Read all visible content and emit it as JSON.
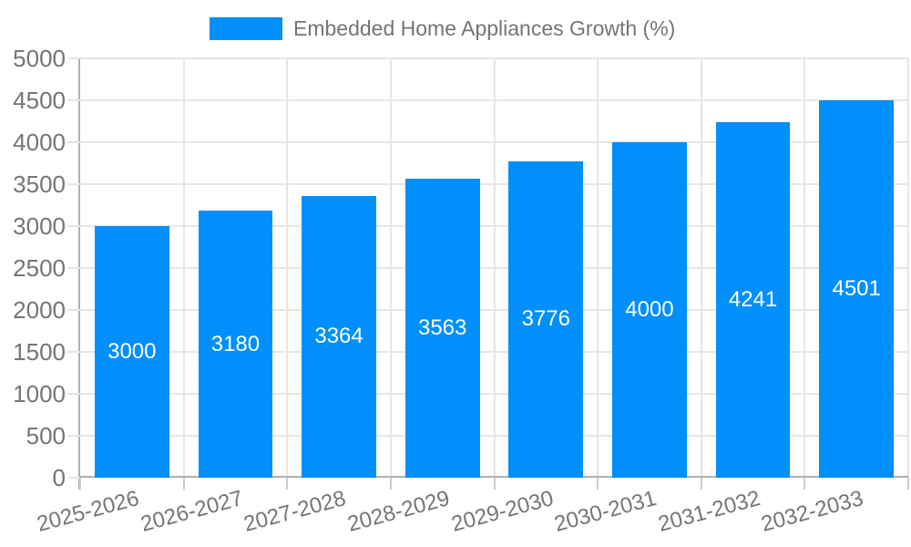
{
  "legend": {
    "label": "Embedded Home Appliances Growth (%)"
  },
  "chart_data": {
    "type": "bar",
    "title": "Embedded Home Appliances Growth (%)",
    "categories": [
      "2025-2026",
      "2026-2027",
      "2027-2028",
      "2028-2029",
      "2029-2030",
      "2030-2031",
      "2031-2032",
      "2032-2033"
    ],
    "values": [
      3000,
      3180,
      3364,
      3563,
      3776,
      4000,
      4241,
      4501
    ],
    "bar_labels": [
      "3000",
      "3180",
      "3364",
      "3563",
      "3776",
      "4000",
      "4241",
      "4501"
    ],
    "xlabel": "",
    "ylabel": "",
    "ylim": [
      0,
      5000
    ],
    "ytick_labels": [
      "0",
      "500",
      "1000",
      "1500",
      "2000",
      "2500",
      "3000",
      "3500",
      "4000",
      "4500",
      "5000"
    ],
    "grid": "both",
    "legend_position": "top",
    "x_label_rotation_deg": -15,
    "colors": {
      "bar": "#008FFB",
      "bar_label": "#ffffff",
      "axis_text": "#757575",
      "grid_line": "#e6e6e6",
      "axis_line": "#b0b0b0",
      "tick_mark": "#cccccc",
      "background": "#ffffff"
    }
  }
}
